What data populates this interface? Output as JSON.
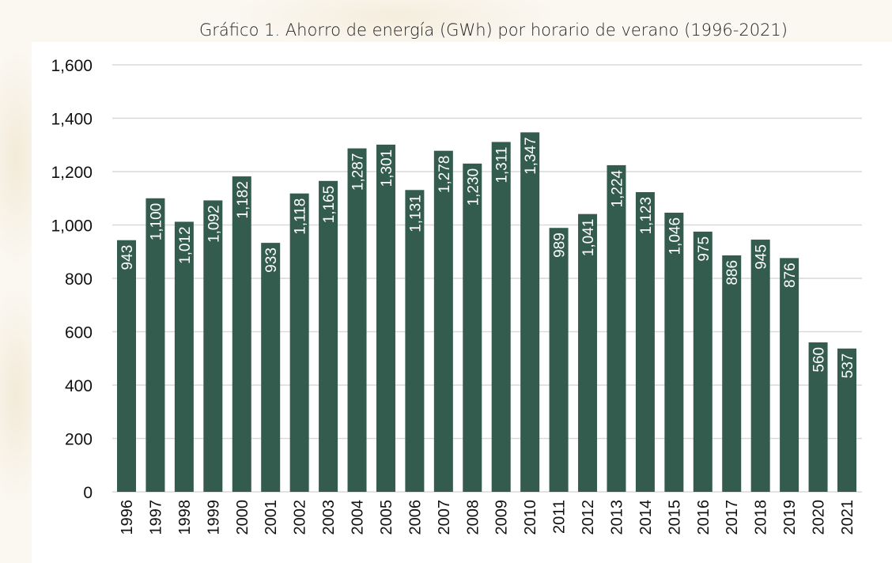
{
  "chart_data": {
    "type": "bar",
    "title": "Gráfico 1. Ahorro de energía (GWh) por horario de verano (1996-2021)",
    "xlabel": "",
    "ylabel": "",
    "ylim": [
      0,
      1600
    ],
    "yticks": [
      "0",
      "200",
      "400",
      "600",
      "800",
      "1,000",
      "1,200",
      "1,400",
      "1,600"
    ],
    "grid": true,
    "bar_color": "#335b4e",
    "categories": [
      "1996",
      "1997",
      "1998",
      "1999",
      "2000",
      "2001",
      "2002",
      "2003",
      "2004",
      "2005",
      "2006",
      "2007",
      "2008",
      "2009",
      "2010",
      "2011",
      "2012",
      "2013",
      "2014",
      "2015",
      "2016",
      "2017",
      "2018",
      "2019",
      "2020",
      "2021"
    ],
    "values": [
      943,
      1100,
      1012,
      1092,
      1182,
      933,
      1118,
      1165,
      1287,
      1301,
      1131,
      1278,
      1230,
      1311,
      1347,
      989,
      1041,
      1224,
      1123,
      1046,
      975,
      886,
      945,
      876,
      560,
      537
    ],
    "data_labels": [
      "943",
      "1,100",
      "1,012",
      "1,092",
      "1,182",
      "933",
      "1,118",
      "1,165",
      "1,287",
      "1,301",
      "1,131",
      "1,278",
      "1,230",
      "1,311",
      "1,347",
      "989",
      "1,041",
      "1,224",
      "1,123",
      "1,046",
      "975",
      "886",
      "945",
      "876",
      "560",
      "537"
    ]
  }
}
